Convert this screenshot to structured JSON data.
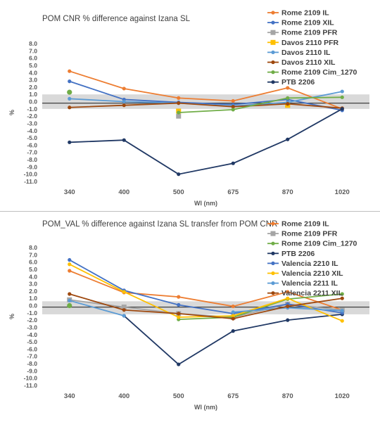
{
  "chart_data": [
    {
      "type": "line",
      "title": "POM CNR % difference against Izana SL",
      "xlabel": "Wl (nm)",
      "ylabel": "%",
      "categories": [
        "340",
        "400",
        "500",
        "675",
        "870",
        "1020"
      ],
      "ylim": [
        -11.0,
        8.0
      ],
      "y_ticks": [
        "8.0",
        "7.0",
        "6.0",
        "5.0",
        "4.0",
        "3.0",
        "2.0",
        "1.0",
        "0.0",
        "-1.0",
        "-2.0",
        "-3.0",
        "-4.0",
        "-5.0",
        "-6.0",
        "-7.0",
        "-8.0",
        "-9.0",
        "-10.0",
        "-11.0"
      ],
      "band": [
        -1.0,
        1.0
      ],
      "reference_line": -0.2,
      "grid": false,
      "legend_position": "top-right",
      "series": [
        {
          "name": "Rome 2109 IL",
          "color": "#ED7D31",
          "values": [
            4.2,
            1.8,
            0.5,
            0.1,
            1.9,
            -1.0
          ]
        },
        {
          "name": "Rome 2109 XIL",
          "color": "#4472C4",
          "values": [
            2.8,
            0.3,
            -0.1,
            -0.4,
            0.3,
            -1.2
          ]
        },
        {
          "name": "Rome 2109 PFR",
          "color": "#A5A5A5",
          "values": [
            null,
            null,
            -2.0,
            null,
            -0.5,
            null
          ]
        },
        {
          "name": "Davos 2110 PFR",
          "color": "#FFC000",
          "values": [
            null,
            null,
            -1.3,
            null,
            -0.5,
            null
          ]
        },
        {
          "name": "Davos 2110 IL",
          "color": "#5B9BD5",
          "values": [
            0.4,
            0.0,
            -0.2,
            -0.6,
            -0.1,
            1.4
          ]
        },
        {
          "name": "Davos 2110 XIL",
          "color": "#9E480E",
          "values": [
            -0.8,
            -0.5,
            -0.2,
            -0.7,
            -0.3,
            -0.9
          ]
        },
        {
          "name": "Rome  2109 Cim_1270",
          "color": "#70AD47",
          "values": [
            1.3,
            null,
            -1.5,
            -1.1,
            0.5,
            0.6
          ]
        },
        {
          "name": "PTB 2206",
          "color": "#203864",
          "values": [
            -5.6,
            -5.3,
            -10.0,
            -8.5,
            -5.2,
            -1.0
          ]
        }
      ]
    },
    {
      "type": "line",
      "title": "POM_VAL % difference against Izana SL transfer from POM CNR",
      "xlabel": "Wl (nm)",
      "ylabel": "%",
      "categories": [
        "340",
        "400",
        "500",
        "675",
        "870",
        "1020"
      ],
      "ylim": [
        -11.0,
        8.0
      ],
      "y_ticks": [
        "8.0",
        "7.0",
        "6.0",
        "5.0",
        "4.0",
        "3.0",
        "2.0",
        "1.0",
        "0.0",
        "-1.0",
        "-2.0",
        "-3.0",
        "-4.0",
        "-5.0",
        "-6.0",
        "-7.0",
        "-8.0",
        "-9.0",
        "-10.0",
        "-11.0"
      ],
      "band": [
        -1.2,
        0.6
      ],
      "reference_line": -0.2,
      "grid": false,
      "legend_position": "top-right",
      "series": [
        {
          "name": "Rome  2109 IL",
          "color": "#ED7D31",
          "values": [
            4.8,
            1.8,
            1.2,
            -0.1,
            1.9,
            -0.6
          ]
        },
        {
          "name": "Rome  2109 PFR",
          "color": "#A5A5A5",
          "values": [
            0.8,
            -0.2,
            -1.1,
            -1.6,
            0.2,
            -0.6
          ]
        },
        {
          "name": "Rome  2109 Cim_1270",
          "color": "#70AD47",
          "values": [
            0.0,
            null,
            -1.9,
            -1.6,
            0.9,
            1.6
          ]
        },
        {
          "name": "PTB 2206",
          "color": "#203864",
          "values": [
            null,
            -1.4,
            -8.1,
            -3.5,
            -2.0,
            -1.2
          ]
        },
        {
          "name": "Valencia 2210 IL",
          "color": "#4472C4",
          "values": [
            6.3,
            2.1,
            0.1,
            -1.1,
            0.2,
            -1.0
          ]
        },
        {
          "name": "Valencia 2210 XIL",
          "color": "#FFC000",
          "values": [
            5.7,
            1.9,
            -1.6,
            -1.4,
            1.0,
            -2.1
          ]
        },
        {
          "name": "Valencia 2211 IL",
          "color": "#5B9BD5",
          "values": [
            0.7,
            -1.4,
            null,
            -0.9,
            -0.3,
            -0.7
          ]
        },
        {
          "name": "Valencia 2211 XIL",
          "color": "#9E480E",
          "values": [
            1.6,
            -0.6,
            -1.1,
            -1.8,
            -0.1,
            1.0
          ]
        }
      ]
    }
  ]
}
